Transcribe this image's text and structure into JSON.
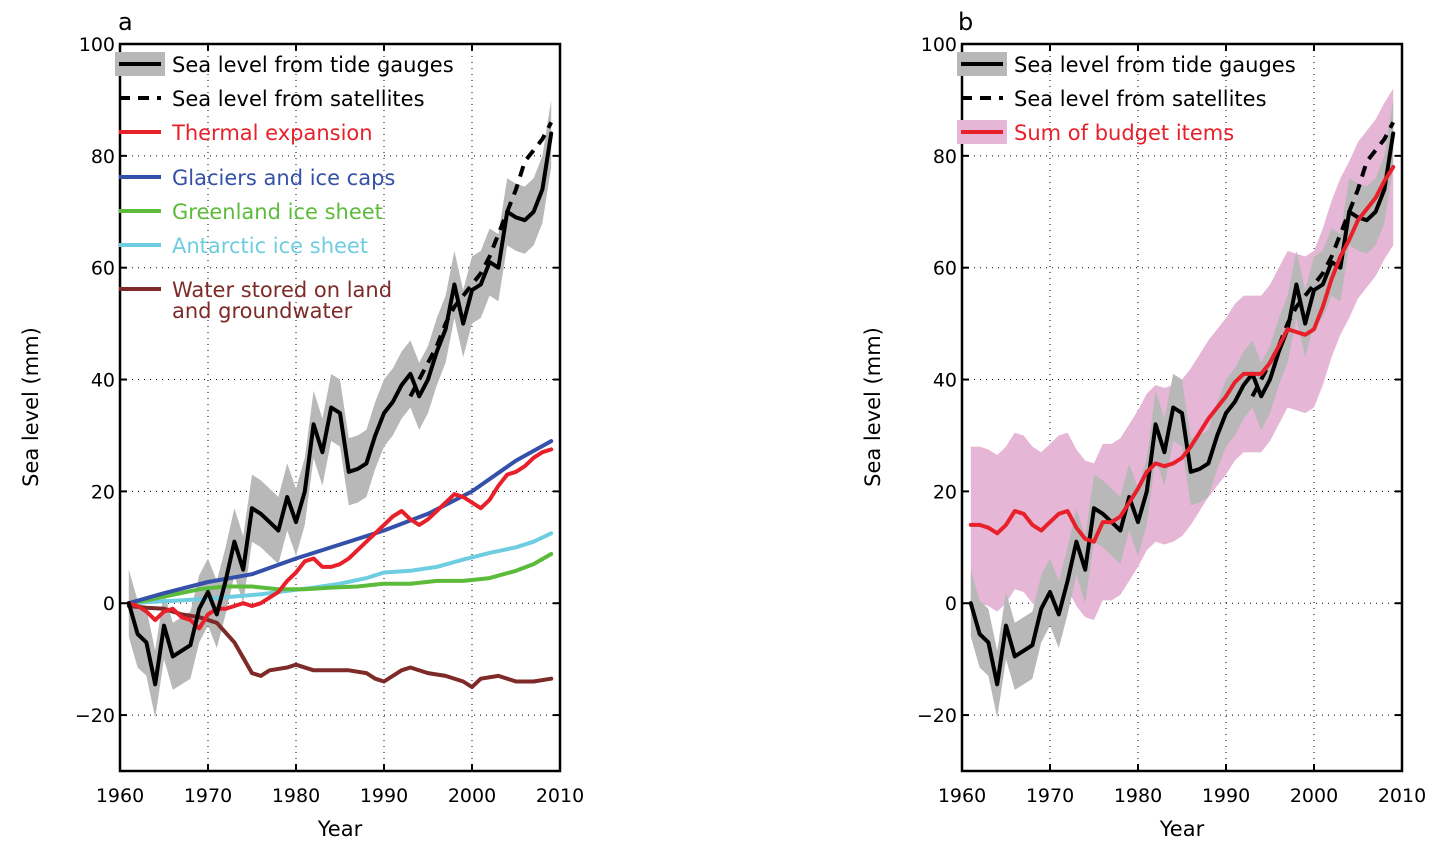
{
  "chart_data": [
    {
      "type": "line",
      "panel_label": "a",
      "xlabel": "Year",
      "ylabel": "Sea level (mm)",
      "xlim": [
        1960,
        2010
      ],
      "ylim": [
        -30,
        100
      ],
      "xticks": [
        "1960",
        "1970",
        "1980",
        "1990",
        "2000",
        "2010"
      ],
      "yticks": [
        "−20",
        "0",
        "20",
        "40",
        "60",
        "80",
        "100"
      ],
      "xtick_values": [
        1960,
        1970,
        1980,
        1990,
        2000,
        2010
      ],
      "ytick_values": [
        -20,
        0,
        20,
        40,
        60,
        80,
        100
      ],
      "grid": true,
      "legend_position": "top-left",
      "series": [
        {
          "name": "Sea level from tide gauges",
          "color": "#000000",
          "style": "solid",
          "band": true,
          "band_color": "#b8b8b8",
          "band_halfwidth": 6,
          "x": [
            1961,
            1962,
            1963,
            1964,
            1965,
            1966,
            1967,
            1968,
            1969,
            1970,
            1971,
            1972,
            1973,
            1974,
            1975,
            1976,
            1977,
            1978,
            1979,
            1980,
            1981,
            1982,
            1983,
            1984,
            1985,
            1986,
            1987,
            1988,
            1989,
            1990,
            1991,
            1992,
            1993,
            1994,
            1995,
            1996,
            1997,
            1998,
            1999,
            2000,
            2001,
            2002,
            2003,
            2004,
            2005,
            2006,
            2007,
            2008,
            2009
          ],
          "values": [
            0,
            -5.5,
            -7,
            -14.5,
            -4,
            -9.5,
            -8.5,
            -7.5,
            -1,
            2,
            -2,
            4,
            11,
            6,
            17,
            16,
            14.5,
            13,
            19,
            14.5,
            20,
            32,
            27,
            35,
            34,
            23.5,
            24,
            25,
            30,
            34,
            36,
            39,
            41,
            37,
            40,
            45,
            49,
            57,
            50,
            56,
            57,
            61,
            60,
            70,
            69,
            68.5,
            70,
            74,
            84
          ]
        },
        {
          "name": "Sea level from satellites",
          "color": "#000000",
          "style": "dashed",
          "x": [
            1993,
            1994,
            1995,
            1996,
            1997,
            1998,
            1999,
            2000,
            2001,
            2002,
            2003,
            2004,
            2005,
            2006,
            2007,
            2008,
            2009
          ],
          "values": [
            37,
            40,
            43,
            46,
            50,
            53,
            55,
            57,
            59,
            62,
            66,
            70,
            74,
            79,
            81,
            83,
            86
          ]
        },
        {
          "name": "Thermal expansion",
          "color": "#e8202a",
          "style": "solid",
          "x": [
            1961,
            1962,
            1963,
            1964,
            1965,
            1966,
            1967,
            1968,
            1969,
            1970,
            1971,
            1972,
            1973,
            1974,
            1975,
            1976,
            1977,
            1978,
            1979,
            1980,
            1981,
            1982,
            1983,
            1984,
            1985,
            1986,
            1987,
            1988,
            1989,
            1990,
            1991,
            1992,
            1993,
            1994,
            1995,
            1996,
            1997,
            1998,
            1999,
            2000,
            2001,
            2002,
            2003,
            2004,
            2005,
            2006,
            2007,
            2008,
            2009
          ],
          "values": [
            0,
            -0.5,
            -1.5,
            -3,
            -1.5,
            -1,
            -2.5,
            -3,
            -4.5,
            -2,
            -1,
            -1,
            -0.5,
            0,
            -0.5,
            0,
            1,
            2,
            4,
            5.5,
            7.5,
            8,
            6.5,
            6.5,
            7,
            8,
            9.5,
            11,
            12.5,
            14,
            15.5,
            16.5,
            15,
            14,
            15,
            16.5,
            18,
            19.5,
            19,
            18,
            17,
            18.5,
            21,
            23,
            23.5,
            24.5,
            26,
            27,
            27.5
          ]
        },
        {
          "name": "Glaciers and ice caps",
          "color": "#3550a8",
          "style": "solid",
          "x": [
            1961,
            1965,
            1970,
            1975,
            1980,
            1985,
            1990,
            1995,
            2000,
            2005,
            2009
          ],
          "values": [
            0,
            1.8,
            3.8,
            5.2,
            8,
            10.5,
            13,
            16,
            20,
            25.5,
            29
          ]
        },
        {
          "name": "Greenland ice sheet",
          "color": "#5cbb3a",
          "style": "solid",
          "x": [
            1961,
            1963,
            1966,
            1969,
            1972,
            1975,
            1978,
            1981,
            1984,
            1987,
            1990,
            1993,
            1996,
            1999,
            2002,
            2005,
            2007,
            2009
          ],
          "values": [
            0,
            0.5,
            1.5,
            2.5,
            3,
            3,
            2.5,
            2.5,
            2.8,
            3,
            3.5,
            3.5,
            4,
            4,
            4.5,
            5.8,
            7,
            8.8
          ]
        },
        {
          "name": "Antarctic ice sheet",
          "color": "#6ecde0",
          "style": "solid",
          "x": [
            1961,
            1964,
            1967,
            1970,
            1973,
            1976,
            1979,
            1982,
            1985,
            1988,
            1990,
            1993,
            1996,
            1999,
            2002,
            2005,
            2007,
            2009
          ],
          "values": [
            0,
            0.3,
            0.5,
            0.8,
            1.2,
            1.6,
            2.2,
            2.8,
            3.5,
            4.5,
            5.5,
            5.8,
            6.5,
            7.8,
            9,
            10,
            11,
            12.5
          ]
        },
        {
          "name": "Water stored on land and groundwater",
          "name_lines": [
            "Water stored on land",
            "and groundwater"
          ],
          "color": "#7d2a28",
          "style": "solid",
          "x": [
            1961,
            1963,
            1965,
            1967,
            1969,
            1971,
            1973,
            1975,
            1976,
            1977,
            1979,
            1980,
            1982,
            1984,
            1986,
            1988,
            1989,
            1990,
            1992,
            1993,
            1995,
            1997,
            1999,
            2000,
            2001,
            2003,
            2005,
            2007,
            2009
          ],
          "values": [
            -0.5,
            -0.8,
            -1,
            -2,
            -2.5,
            -3.5,
            -7,
            -12.5,
            -13,
            -12,
            -11.5,
            -11,
            -12,
            -12,
            -12,
            -12.5,
            -13.5,
            -14,
            -12,
            -11.5,
            -12.5,
            -13,
            -14,
            -15,
            -13.5,
            -13,
            -14,
            -14,
            -13.5
          ]
        }
      ]
    },
    {
      "type": "line",
      "panel_label": "b",
      "xlabel": "Year",
      "ylabel": "Sea level (mm)",
      "xlim": [
        1960,
        2010
      ],
      "ylim": [
        -30,
        100
      ],
      "xticks": [
        "1960",
        "1970",
        "1980",
        "1990",
        "2000",
        "2010"
      ],
      "yticks": [
        "−20",
        "0",
        "20",
        "40",
        "60",
        "80",
        "100"
      ],
      "xtick_values": [
        1960,
        1970,
        1980,
        1990,
        2000,
        2010
      ],
      "ytick_values": [
        -20,
        0,
        20,
        40,
        60,
        80,
        100
      ],
      "grid": true,
      "legend_position": "top-left",
      "series": [
        {
          "name": "Sea level from tide gauges",
          "color": "#000000",
          "style": "solid",
          "band": true,
          "band_color": "#b8b8b8",
          "band_halfwidth": 6,
          "x": [
            1961,
            1962,
            1963,
            1964,
            1965,
            1966,
            1967,
            1968,
            1969,
            1970,
            1971,
            1972,
            1973,
            1974,
            1975,
            1976,
            1977,
            1978,
            1979,
            1980,
            1981,
            1982,
            1983,
            1984,
            1985,
            1986,
            1987,
            1988,
            1989,
            1990,
            1991,
            1992,
            1993,
            1994,
            1995,
            1996,
            1997,
            1998,
            1999,
            2000,
            2001,
            2002,
            2003,
            2004,
            2005,
            2006,
            2007,
            2008,
            2009
          ],
          "values": [
            0,
            -5.5,
            -7,
            -14.5,
            -4,
            -9.5,
            -8.5,
            -7.5,
            -1,
            2,
            -2,
            4,
            11,
            6,
            17,
            16,
            14.5,
            13,
            19,
            14.5,
            20,
            32,
            27,
            35,
            34,
            23.5,
            24,
            25,
            30,
            34,
            36,
            39,
            41,
            37,
            40,
            45,
            49,
            57,
            50,
            56,
            57,
            61,
            60,
            70,
            69,
            68.5,
            70,
            74,
            84
          ]
        },
        {
          "name": "Sea level from satellites",
          "color": "#000000",
          "style": "dashed",
          "x": [
            1993,
            1994,
            1995,
            1996,
            1997,
            1998,
            1999,
            2000,
            2001,
            2002,
            2003,
            2004,
            2005,
            2006,
            2007,
            2008,
            2009
          ],
          "values": [
            37,
            40,
            43,
            46,
            50,
            53,
            55,
            57,
            59,
            62,
            66,
            70,
            74,
            79,
            81,
            83,
            86
          ]
        },
        {
          "name": "Sum of budget items",
          "color": "#e8202a",
          "style": "solid",
          "band": true,
          "band_color": "#e6b6d6",
          "band_halfwidth": 14,
          "x": [
            1961,
            1962,
            1963,
            1964,
            1965,
            1966,
            1967,
            1968,
            1969,
            1970,
            1971,
            1972,
            1973,
            1974,
            1975,
            1976,
            1977,
            1978,
            1979,
            1980,
            1981,
            1982,
            1983,
            1984,
            1985,
            1986,
            1987,
            1988,
            1989,
            1990,
            1991,
            1992,
            1993,
            1994,
            1995,
            1996,
            1997,
            1998,
            1999,
            2000,
            2001,
            2002,
            2003,
            2004,
            2005,
            2006,
            2007,
            2008,
            2009
          ],
          "values": [
            14,
            14,
            13.5,
            12.5,
            14,
            16.5,
            16,
            14,
            13,
            14.5,
            16,
            16.5,
            13.5,
            11.5,
            11,
            14.5,
            14.5,
            15.5,
            18,
            20.5,
            23.5,
            25,
            24.5,
            25,
            26,
            28,
            30.5,
            33,
            35,
            37,
            39.5,
            41,
            41,
            41,
            43,
            46,
            49,
            48.5,
            48,
            49,
            53,
            58,
            62,
            65,
            68.5,
            70.5,
            72.5,
            75.5,
            78
          ]
        }
      ]
    }
  ]
}
